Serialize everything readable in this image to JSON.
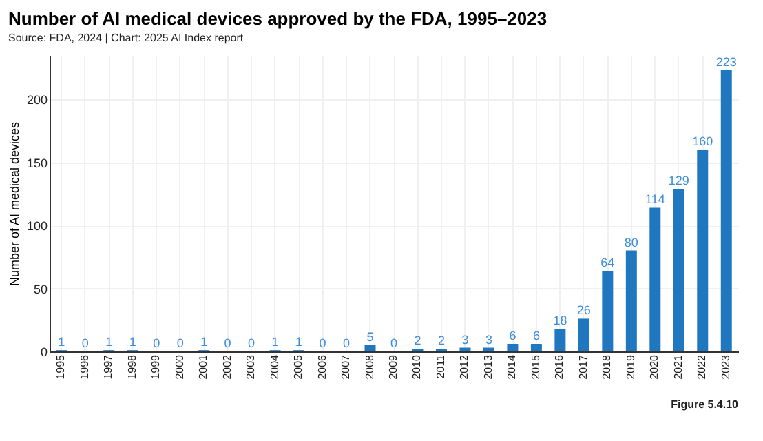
{
  "chart_data": {
    "type": "bar",
    "title": "Number of AI medical devices approved by the FDA, 1995–2023",
    "subtitle": "Source: FDA, 2024 | Chart: 2025 AI Index report",
    "ylabel": "Number of AI medical devices",
    "categories": [
      "1995",
      "1996",
      "1997",
      "1998",
      "1999",
      "2000",
      "2001",
      "2002",
      "2003",
      "2004",
      "2005",
      "2006",
      "2007",
      "2008",
      "2009",
      "2010",
      "2011",
      "2012",
      "2013",
      "2014",
      "2015",
      "2016",
      "2017",
      "2018",
      "2019",
      "2020",
      "2021",
      "2022",
      "2023"
    ],
    "values": [
      1,
      0,
      1,
      1,
      0,
      0,
      1,
      0,
      0,
      1,
      1,
      0,
      0,
      5,
      0,
      2,
      2,
      3,
      3,
      6,
      6,
      18,
      26,
      64,
      80,
      114,
      129,
      160,
      223
    ],
    "color": "#1f77bf",
    "ylim": [
      0,
      235
    ],
    "yticks": [
      0,
      50,
      100,
      150,
      200
    ],
    "grid": true,
    "data_labels": true,
    "annotations": [
      "Figure 5.4.10"
    ]
  }
}
